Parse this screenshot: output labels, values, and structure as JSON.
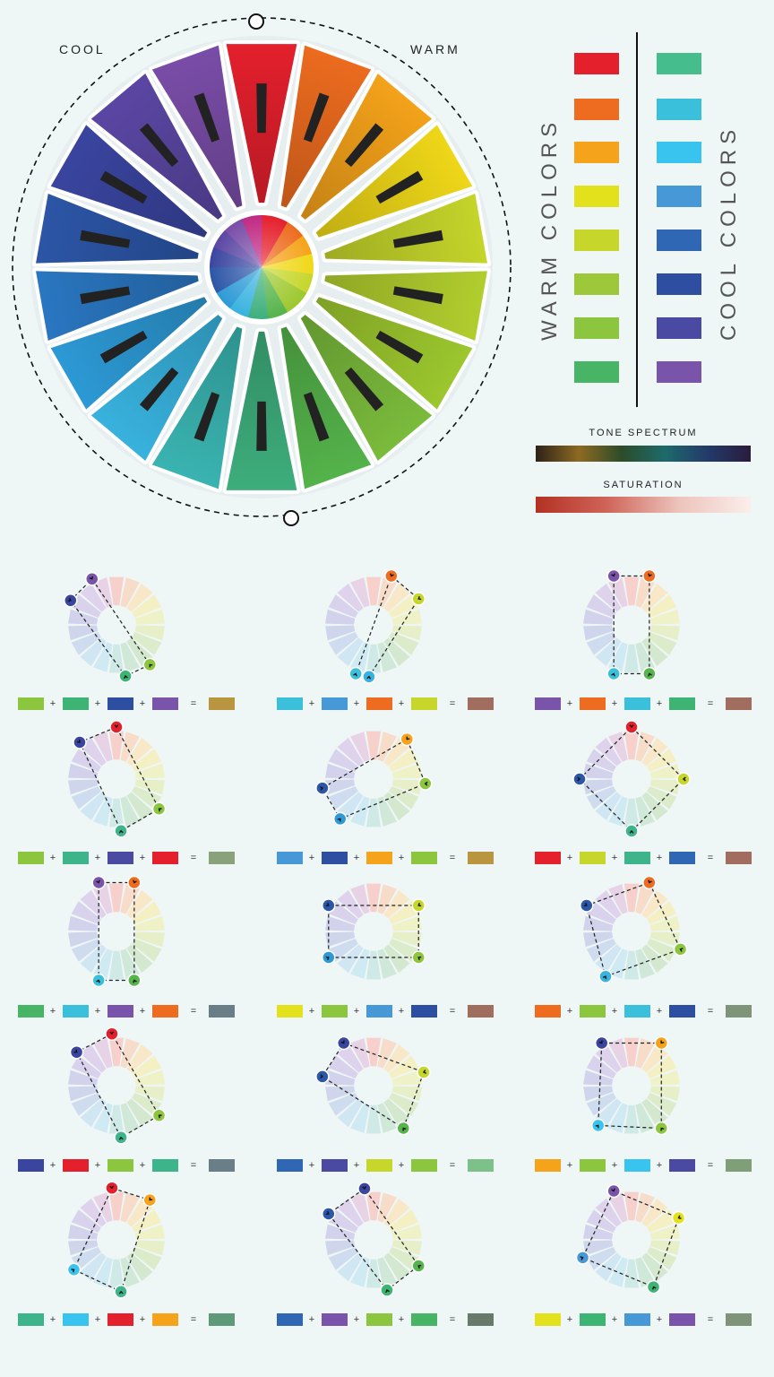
{
  "wheel": {
    "cool_label": "COOL",
    "warm_label": "WARM",
    "segment_colors": [
      "#e5202d",
      "#ed6c1f",
      "#f5a31a",
      "#f0d818",
      "#c6d62a",
      "#b2cf2e",
      "#9dc82e",
      "#7bbc3c",
      "#55b44b",
      "#3eaf7d",
      "#3ab5b2",
      "#38b3df",
      "#2d9ad6",
      "#2a77c2",
      "#2c56a7",
      "#3a45a0",
      "#5b47a4",
      "#7a4da8"
    ],
    "center_colors": [
      "#e5202d",
      "#ed6c1f",
      "#f5a31a",
      "#f0d818",
      "#c6d62a",
      "#9dc82e",
      "#55b44b",
      "#3eaf7d",
      "#38b3df",
      "#2d9ad6",
      "#2c56a7",
      "#3a45a0",
      "#5b47a4",
      "#7a4da8",
      "#c02a83",
      "#e5202d"
    ]
  },
  "legend": {
    "warm_title": "WARM COLORS",
    "cool_title": "COOL COLORS",
    "warm_swatches": [
      "#e5202d",
      "#ed6c1f",
      "#f5a31a",
      "#e2e11c",
      "#c6d62a",
      "#9dc83a",
      "#8cc63f",
      "#47b565"
    ],
    "cool_swatches": [
      "#46bd8c",
      "#3bc0dc",
      "#38c4ef",
      "#4698d6",
      "#2f67b4",
      "#2e4ea2",
      "#4a4aa2",
      "#7a53ab"
    ]
  },
  "tone_spectrum": {
    "title": "TONE SPECTRUM",
    "colors": [
      "#2e2118",
      "#8d6a22",
      "#2c4c2a",
      "#1d6a6a",
      "#233a6a",
      "#2a1c3c"
    ]
  },
  "saturation": {
    "title": "SATURATION",
    "colors": [
      "#b23122",
      "#d0655a",
      "#ecc4bc",
      "#fbeeea"
    ]
  },
  "operators": {
    "plus": "+",
    "equals": "="
  },
  "combos": [
    {
      "swatches": [
        "#8cc63f",
        "#3eb474",
        "#2e4ea2",
        "#7a53ab"
      ],
      "result": "#b8953e"
    },
    {
      "swatches": [
        "#3bc0dc",
        "#4698d6",
        "#ed6c1f",
        "#c6d62a"
      ],
      "result": "#a06d5f"
    },
    {
      "swatches": [
        "#7a53ab",
        "#ed6c1f",
        "#3bc0dc",
        "#3eb474"
      ],
      "result": "#a06d5f"
    },
    {
      "swatches": [
        "#8cc63f",
        "#3eb48a",
        "#4a4aa2",
        "#e5202d"
      ],
      "result": "#8aa27a"
    },
    {
      "swatches": [
        "#4698d6",
        "#2e4ea2",
        "#f5a31a",
        "#8cc63f"
      ],
      "result": "#b8953e"
    },
    {
      "swatches": [
        "#e5202d",
        "#c6d62a",
        "#3eb48a",
        "#2f67b4"
      ],
      "result": "#a06d5f"
    },
    {
      "swatches": [
        "#47b565",
        "#3bc0dc",
        "#7a53ab",
        "#ed6c1f"
      ],
      "result": "#6a7e87"
    },
    {
      "swatches": [
        "#e2e11c",
        "#8cc63f",
        "#4698d6",
        "#2e4ea2"
      ],
      "result": "#a06d5f"
    },
    {
      "swatches": [
        "#ed6c1f",
        "#8cc63f",
        "#3bc0dc",
        "#2e4ea2"
      ],
      "result": "#7e9478"
    },
    {
      "swatches": [
        "#3a45a0",
        "#e5202d",
        "#8cc63f",
        "#3eb48a"
      ],
      "result": "#6a7e87"
    },
    {
      "swatches": [
        "#2f67b4",
        "#4a4aa2",
        "#c6d62a",
        "#8cc63f"
      ],
      "result": "#7cc08a"
    },
    {
      "swatches": [
        "#f5a31a",
        "#8cc63f",
        "#38c4ef",
        "#4a4aa2"
      ],
      "result": "#7e9f78"
    },
    {
      "swatches": [
        "#3eb48a",
        "#38c4ef",
        "#e5202d",
        "#f5a31a"
      ],
      "result": "#5e9a79"
    },
    {
      "swatches": [
        "#2f67b4",
        "#7a53ab",
        "#8cc63f",
        "#47b565"
      ],
      "result": "#6a7a6a"
    },
    {
      "swatches": [
        "#e2e11c",
        "#3eb474",
        "#4698d6",
        "#7a53ab"
      ],
      "result": "#7e9478"
    }
  ],
  "mini_markers": [
    [
      [
        -28,
        "#7a53ab"
      ],
      [
        -62,
        "#3a45a0"
      ],
      [
        140,
        "#8cc63f"
      ],
      [
        170,
        "#3eb474"
      ]
    ],
    [
      [
        20,
        "#ed6c1f"
      ],
      [
        60,
        "#c6d62a"
      ],
      [
        -160,
        "#3bc0dc"
      ],
      [
        -175,
        "#38b3df"
      ]
    ],
    [
      [
        -20,
        "#7a53ab"
      ],
      [
        20,
        "#ed6c1f"
      ],
      [
        -160,
        "#3bc0dc"
      ],
      [
        160,
        "#55b44b"
      ]
    ],
    [
      [
        0,
        "#e5202d"
      ],
      [
        -45,
        "#3a45a0"
      ],
      [
        125,
        "#8cc63f"
      ],
      [
        175,
        "#3eb48a"
      ]
    ],
    [
      [
        40,
        "#f5a31a"
      ],
      [
        95,
        "#8cc63f"
      ],
      [
        -100,
        "#2c56a7"
      ],
      [
        -140,
        "#2d9ad6"
      ]
    ],
    [
      [
        0,
        "#e5202d"
      ],
      [
        90,
        "#c6d62a"
      ],
      [
        -90,
        "#2c56a7"
      ],
      [
        180,
        "#3eb48a"
      ]
    ],
    [
      [
        -20,
        "#7a53ab"
      ],
      [
        20,
        "#ed6c1f"
      ],
      [
        -160,
        "#3bc0dc"
      ],
      [
        160,
        "#55b44b"
      ]
    ],
    [
      [
        -60,
        "#2c56a7"
      ],
      [
        60,
        "#c6d62a"
      ],
      [
        -120,
        "#2d9ad6"
      ],
      [
        120,
        "#8cc63f"
      ]
    ],
    [
      [
        20,
        "#ed6c1f"
      ],
      [
        -60,
        "#2c56a7"
      ],
      [
        110,
        "#8cc63f"
      ],
      [
        -150,
        "#38b3df"
      ]
    ],
    [
      [
        -50,
        "#3a45a0"
      ],
      [
        -5,
        "#e5202d"
      ],
      [
        125,
        "#8cc63f"
      ],
      [
        175,
        "#3eb48a"
      ]
    ],
    [
      [
        -35,
        "#3a45a0"
      ],
      [
        -80,
        "#2c56a7"
      ],
      [
        75,
        "#c6d62a"
      ],
      [
        145,
        "#55b44b"
      ]
    ],
    [
      [
        35,
        "#f5a31a"
      ],
      [
        145,
        "#8cc63f"
      ],
      [
        -140,
        "#38c4ef"
      ],
      [
        -35,
        "#3a45a0"
      ]
    ],
    [
      [
        -5,
        "#e5202d"
      ],
      [
        40,
        "#f5a31a"
      ],
      [
        -125,
        "#38c4ef"
      ],
      [
        175,
        "#3eb48a"
      ]
    ],
    [
      [
        -10,
        "#3a45a0"
      ],
      [
        -60,
        "#2c56a7"
      ],
      [
        120,
        "#55b44b"
      ],
      [
        165,
        "#3eb474"
      ]
    ],
    [
      [
        -20,
        "#7a53ab"
      ],
      [
        65,
        "#e2e11c"
      ],
      [
        -110,
        "#4698d6"
      ],
      [
        155,
        "#3eb474"
      ]
    ]
  ]
}
